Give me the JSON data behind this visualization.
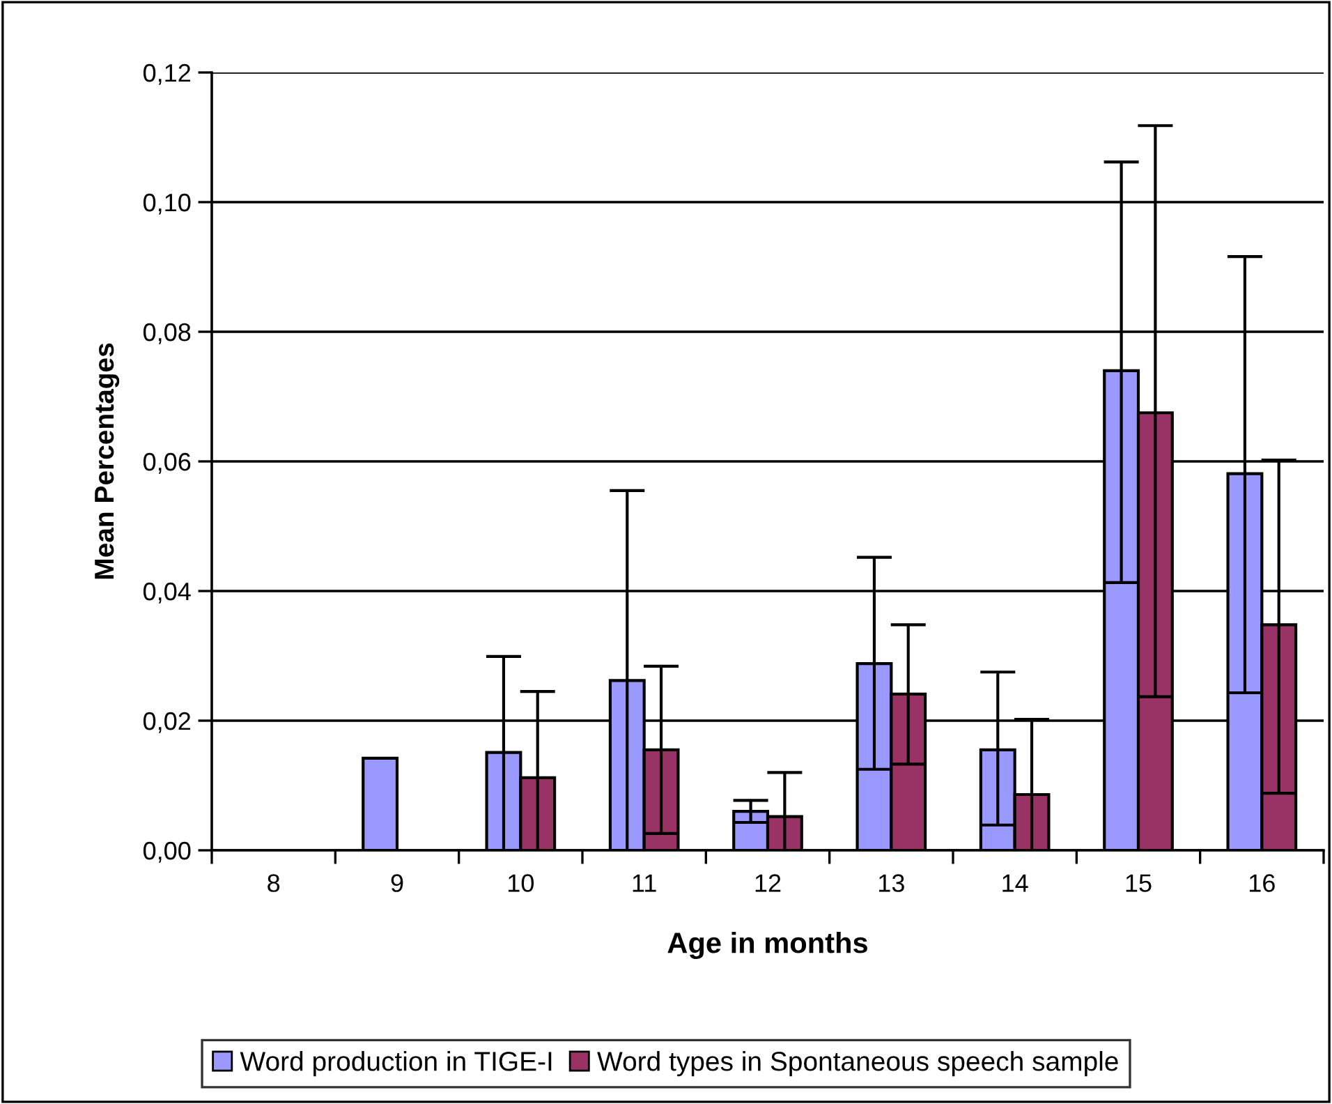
{
  "chart_data": {
    "type": "bar",
    "xlabel": "Age in months",
    "ylabel": "Mean Percentages",
    "categories": [
      "8",
      "9",
      "10",
      "11",
      "12",
      "13",
      "14",
      "15",
      "16"
    ],
    "series": [
      {
        "name": "Word production in TIGE-I",
        "color": "#9999ff",
        "values": [
          null,
          0.0142,
          0.0151,
          0.0262,
          0.006,
          0.0288,
          0.0155,
          0.074,
          0.0581
        ],
        "errors": [
          null,
          null,
          [
            0,
            0.0299
          ],
          [
            0,
            0.0555
          ],
          [
            0.0043,
            0.0077
          ],
          [
            0.0125,
            0.0452
          ],
          [
            0.0039,
            0.0275
          ],
          [
            0.0413,
            0.1062
          ],
          [
            0.0243,
            0.0916
          ]
        ]
      },
      {
        "name": "Word types in Spontaneous speech sample",
        "color": "#993366",
        "values": [
          null,
          null,
          0.0112,
          0.0155,
          0.0052,
          0.0241,
          0.0086,
          0.0675,
          0.0348
        ],
        "errors": [
          null,
          null,
          [
            0,
            0.0245
          ],
          [
            0.0026,
            0.0284
          ],
          [
            0,
            0.012
          ],
          [
            0.0133,
            0.0348
          ],
          [
            0,
            0.0202
          ],
          [
            0.0237,
            0.1118
          ],
          [
            0.0088,
            0.0602
          ]
        ]
      }
    ],
    "ylim": [
      0,
      0.12
    ],
    "yticks": [
      {
        "value": 0,
        "label": "0,00"
      },
      {
        "value": 0.02,
        "label": "0,02"
      },
      {
        "value": 0.04,
        "label": "0,04"
      },
      {
        "value": 0.06,
        "label": "0,06"
      },
      {
        "value": 0.08,
        "label": "0,08"
      },
      {
        "value": 0.1,
        "label": "0,10"
      },
      {
        "value": 0.12,
        "label": "0,12"
      }
    ],
    "grid": "y",
    "legend": "bottom"
  }
}
